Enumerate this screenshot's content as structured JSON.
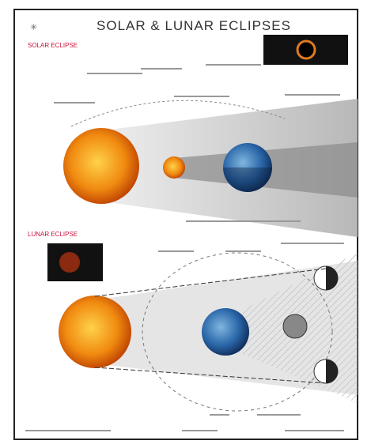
{
  "header": {
    "title": "SOLAR & LUNAR ECLIPSES"
  },
  "sections": [
    {
      "heading": "SOLAR ECLIPSE"
    },
    {
      "heading": "LUNAR ECLIPSE"
    }
  ]
}
